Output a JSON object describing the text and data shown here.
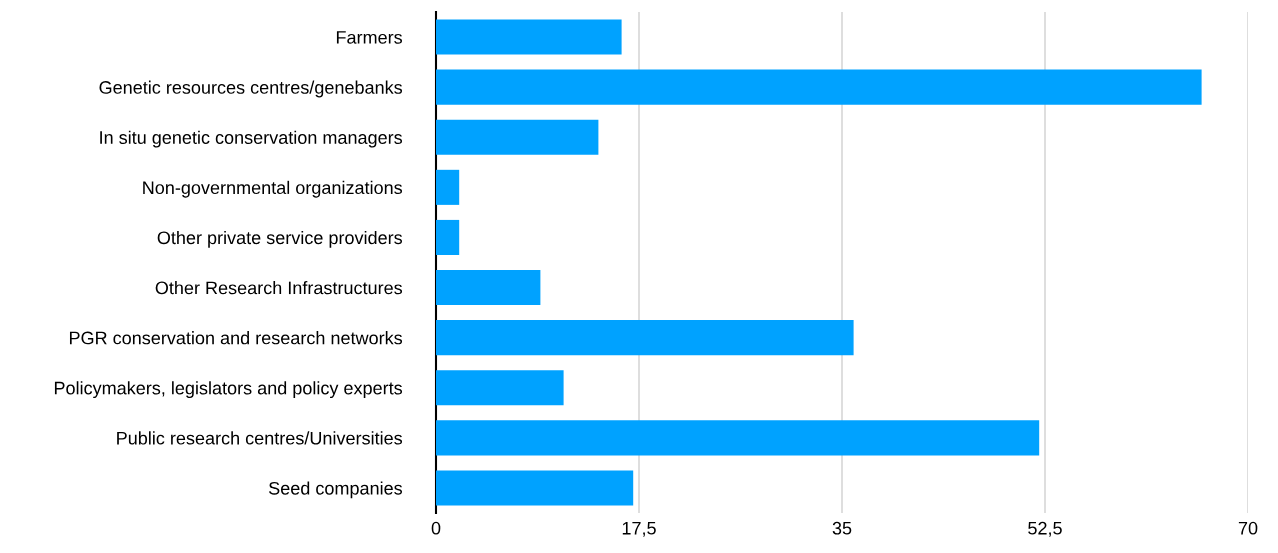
{
  "chart_data": {
    "type": "bar",
    "orientation": "horizontal",
    "categories": [
      "Farmers",
      "Genetic resources centres/genebanks",
      "In situ genetic conservation managers",
      "Non-governmental organizations",
      "Other private service providers",
      "Other Research Infrastructures",
      "PGR conservation and research networks",
      "Policymakers, legislators and policy experts",
      "Public research centres/Universities",
      "Seed companies"
    ],
    "values": [
      16,
      66,
      14,
      2,
      2,
      9,
      36,
      11,
      52,
      17
    ],
    "color": "#00a2ff",
    "xlim": [
      0,
      70
    ],
    "xticks": [
      0,
      {
        "value": 17.5,
        "label": "17,5"
      },
      35,
      {
        "value": 52.5,
        "label": "52,5"
      },
      70
    ],
    "grid": "x",
    "legend": false
  }
}
